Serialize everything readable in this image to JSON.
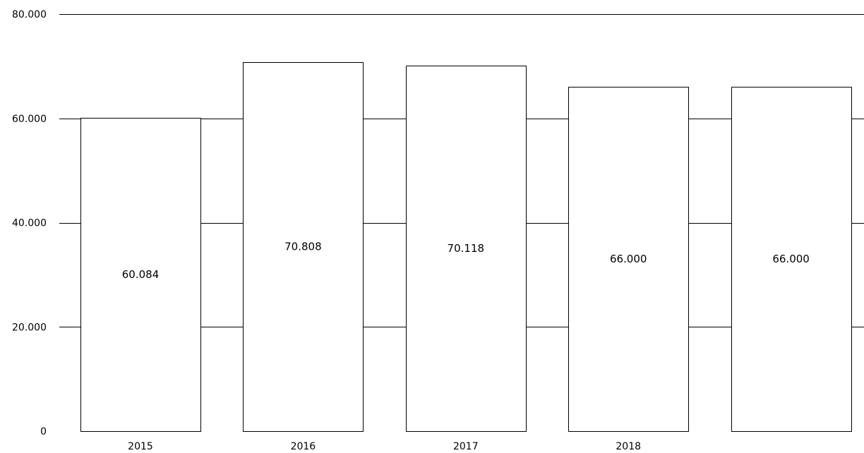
{
  "colors": {
    "bar_fill": "#ffffff",
    "bar_stroke": "#000000",
    "gridline": "#000000",
    "text": "#000000"
  },
  "chart_data": {
    "type": "bar",
    "title": "",
    "xlabel": "",
    "ylabel": "",
    "categories": [
      "2015",
      "2016",
      "2017",
      "2018",
      ""
    ],
    "values": [
      60084,
      70808,
      70118,
      66000,
      66000
    ],
    "data_labels": [
      "60.084",
      "70.808",
      "70.118",
      "66.000",
      "66.000"
    ],
    "ylim": [
      0,
      80000
    ],
    "yticks": [
      0,
      20000,
      40000,
      60000,
      80000
    ],
    "ytick_labels": [
      "0",
      "20.000",
      "40.000",
      "60.000",
      "80.000"
    ],
    "grid": true,
    "legend": "none"
  }
}
